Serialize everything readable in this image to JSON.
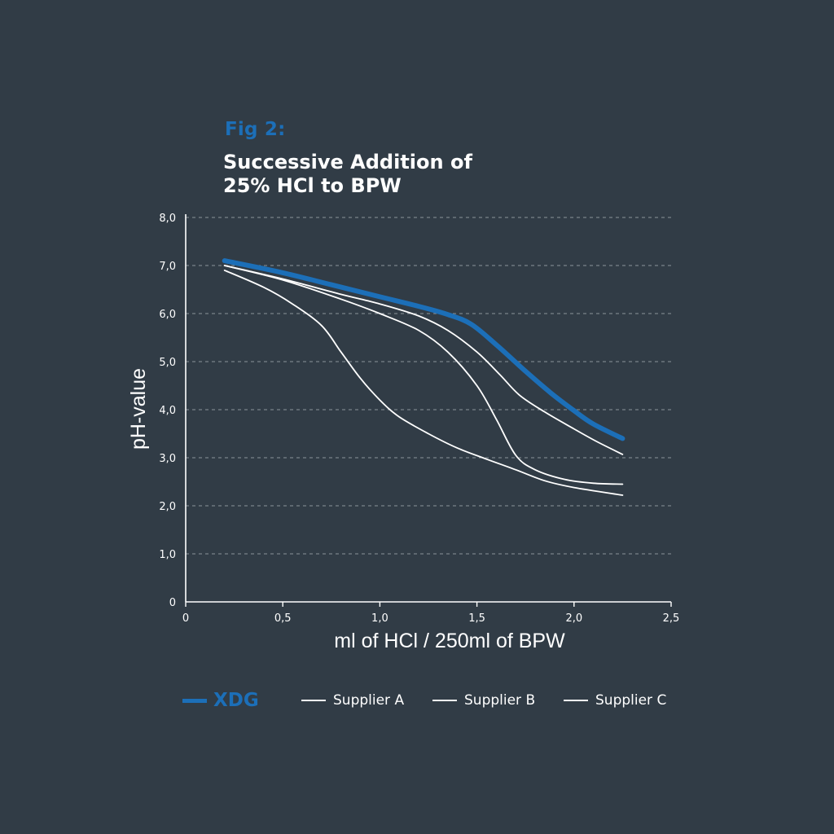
{
  "figure_label": "Fig 2:",
  "title_lines": [
    "Successive Addition of",
    "25% HCl to BPW"
  ],
  "colors": {
    "background": "#313c46",
    "accent": "#1c6fb8",
    "grid": "#8a939b",
    "axis": "#ffffff",
    "series_secondary": "#ffffff"
  },
  "chart_data": {
    "type": "line",
    "xlabel": "ml of HCl / 250ml of BPW",
    "ylabel": "pH-value",
    "xlim": [
      0,
      2.5
    ],
    "ylim": [
      0,
      8
    ],
    "x_ticks": [
      0,
      0.5,
      1.0,
      1.5,
      2.0,
      2.5
    ],
    "x_tick_labels": [
      "0",
      "0,5",
      "1,0",
      "1,5",
      "2,0",
      "2,5"
    ],
    "y_ticks": [
      0,
      1,
      2,
      3,
      4,
      5,
      6,
      7,
      8
    ],
    "y_tick_labels": [
      "0",
      "1,0",
      "2,0",
      "3,0",
      "4,0",
      "5,0",
      "6,0",
      "7,0",
      "8,0"
    ],
    "grid": "horizontal-dashed",
    "legend_position": "bottom",
    "series": [
      {
        "name": "XDG",
        "emphasis": true,
        "points": [
          [
            0.2,
            7.1
          ],
          [
            0.5,
            6.85
          ],
          [
            0.75,
            6.6
          ],
          [
            1.0,
            6.35
          ],
          [
            1.2,
            6.15
          ],
          [
            1.35,
            5.98
          ],
          [
            1.47,
            5.78
          ],
          [
            1.6,
            5.35
          ],
          [
            1.75,
            4.8
          ],
          [
            1.88,
            4.35
          ],
          [
            2.0,
            3.98
          ],
          [
            2.1,
            3.7
          ],
          [
            2.25,
            3.4
          ]
        ]
      },
      {
        "name": "Supplier A",
        "emphasis": false,
        "points": [
          [
            0.2,
            6.9
          ],
          [
            0.4,
            6.55
          ],
          [
            0.55,
            6.2
          ],
          [
            0.7,
            5.75
          ],
          [
            0.8,
            5.2
          ],
          [
            0.9,
            4.65
          ],
          [
            1.0,
            4.2
          ],
          [
            1.1,
            3.85
          ],
          [
            1.25,
            3.5
          ],
          [
            1.4,
            3.2
          ],
          [
            1.55,
            2.97
          ],
          [
            1.7,
            2.75
          ],
          [
            1.85,
            2.52
          ],
          [
            2.0,
            2.38
          ],
          [
            2.25,
            2.22
          ]
        ]
      },
      {
        "name": "Supplier B",
        "emphasis": false,
        "points": [
          [
            0.2,
            7.0
          ],
          [
            0.5,
            6.7
          ],
          [
            0.8,
            6.3
          ],
          [
            1.0,
            6.0
          ],
          [
            1.2,
            5.65
          ],
          [
            1.35,
            5.2
          ],
          [
            1.5,
            4.5
          ],
          [
            1.6,
            3.8
          ],
          [
            1.7,
            3.05
          ],
          [
            1.8,
            2.75
          ],
          [
            1.95,
            2.55
          ],
          [
            2.1,
            2.47
          ],
          [
            2.25,
            2.45
          ]
        ]
      },
      {
        "name": "Supplier C",
        "emphasis": false,
        "points": [
          [
            0.2,
            7.0
          ],
          [
            0.5,
            6.72
          ],
          [
            0.8,
            6.4
          ],
          [
            1.0,
            6.2
          ],
          [
            1.2,
            5.95
          ],
          [
            1.35,
            5.65
          ],
          [
            1.5,
            5.2
          ],
          [
            1.62,
            4.72
          ],
          [
            1.72,
            4.3
          ],
          [
            1.85,
            3.95
          ],
          [
            2.0,
            3.6
          ],
          [
            2.12,
            3.33
          ],
          [
            2.25,
            3.07
          ]
        ]
      }
    ]
  }
}
